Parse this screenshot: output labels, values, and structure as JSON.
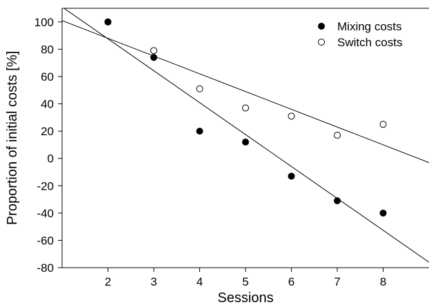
{
  "chart_data": {
    "type": "scatter",
    "xlabel": "Sessions",
    "ylabel": "Proportion of initial costs [%]",
    "xlim": [
      1,
      9
    ],
    "ylim": [
      -80,
      110
    ],
    "xticks": [
      2,
      3,
      4,
      5,
      6,
      7,
      8
    ],
    "yticks": [
      -80,
      -60,
      -40,
      -20,
      0,
      20,
      40,
      60,
      80,
      100
    ],
    "grid": false,
    "legend_position": "top-right",
    "series": [
      {
        "name": "Mixing costs",
        "marker": "filled-circle",
        "color": "#000000",
        "x": [
          2,
          3,
          4,
          5,
          6,
          7,
          8
        ],
        "y": [
          100,
          74,
          20,
          12,
          -13,
          -31,
          -40
        ],
        "fit_line": [
          [
            1,
            111
          ],
          [
            9,
            -76
          ]
        ]
      },
      {
        "name": "Switch costs",
        "marker": "open-circle",
        "color": "#000000",
        "x": [
          2,
          3,
          4,
          5,
          6,
          7,
          8
        ],
        "y": [
          100,
          79,
          51,
          37,
          31,
          17,
          25
        ],
        "fit_line": [
          [
            1,
            101
          ],
          [
            9,
            -3
          ]
        ]
      }
    ]
  }
}
